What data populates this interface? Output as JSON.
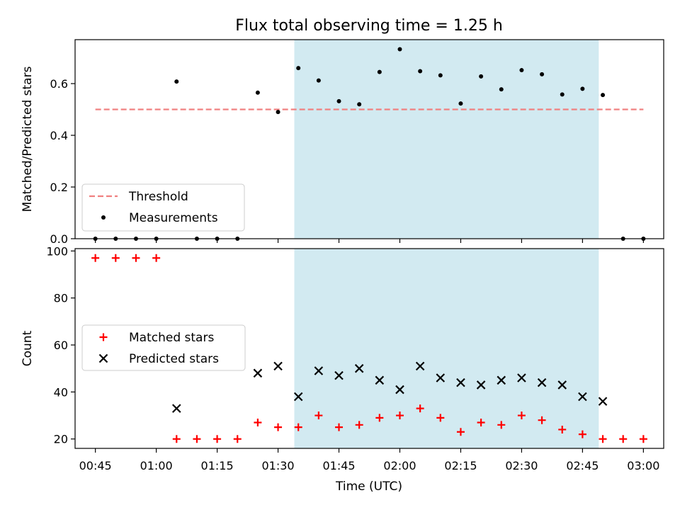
{
  "title": "Flux total observing time = 1.25 h",
  "xlabel": "Time (UTC)",
  "colors": {
    "shade": "#add8e6",
    "threshold": "#f08080",
    "measurements": "#000000",
    "matched": "#ff0000",
    "predicted": "#000000"
  },
  "chart_data": [
    {
      "type": "scatter",
      "ylabel": "Matched/Predicted stars",
      "ylim": [
        0,
        0.77
      ],
      "yticks": [
        "0.0",
        "0.2",
        "0.4",
        "0.6"
      ],
      "ytick_values": [
        0,
        0.2,
        0.4,
        0.6
      ],
      "x_range": [
        "00:40",
        "03:05"
      ],
      "shaded_interval": [
        "01:34",
        "02:49"
      ],
      "legend": {
        "placement": "lower-left",
        "entries": [
          "Threshold",
          "Measurements"
        ]
      },
      "threshold": {
        "name": "Threshold",
        "value": 0.5,
        "x": [
          "00:45",
          "03:00"
        ]
      },
      "series": [
        {
          "name": "Measurements",
          "x": [
            "00:45",
            "00:50",
            "00:55",
            "01:00",
            "01:05",
            "01:10",
            "01:15",
            "01:20",
            "01:25",
            "01:30",
            "01:35",
            "01:40",
            "01:45",
            "01:50",
            "01:55",
            "02:00",
            "02:05",
            "02:10",
            "02:15",
            "02:20",
            "02:25",
            "02:30",
            "02:35",
            "02:40",
            "02:45",
            "02:50",
            "02:55",
            "03:00"
          ],
          "y": [
            0.0,
            0.0,
            0.0,
            0.0,
            0.608,
            0.0,
            0.0,
            0.0,
            0.565,
            0.49,
            0.66,
            0.612,
            0.532,
            0.52,
            0.645,
            0.733,
            0.648,
            0.632,
            0.523,
            0.628,
            0.578,
            0.652,
            0.636,
            0.558,
            0.58,
            0.556,
            0.0,
            0.0
          ]
        }
      ]
    },
    {
      "type": "scatter",
      "ylabel": "Count",
      "ylim": [
        16,
        101
      ],
      "yticks": [
        "20",
        "40",
        "60",
        "80",
        "100"
      ],
      "ytick_values": [
        20,
        40,
        60,
        80,
        100
      ],
      "x_range": [
        "00:40",
        "03:05"
      ],
      "xticks": [
        "00:45",
        "01:00",
        "01:15",
        "01:30",
        "01:45",
        "02:00",
        "02:15",
        "02:30",
        "02:45",
        "03:00"
      ],
      "shaded_interval": [
        "01:34",
        "02:49"
      ],
      "legend": {
        "placement": "center-left",
        "entries": [
          "Matched stars",
          "Predicted stars"
        ]
      },
      "series": [
        {
          "name": "Matched stars",
          "x": [
            "00:45",
            "00:50",
            "00:55",
            "01:00",
            "01:05",
            "01:10",
            "01:15",
            "01:20",
            "01:25",
            "01:30",
            "01:35",
            "01:40",
            "01:45",
            "01:50",
            "01:55",
            "02:00",
            "02:05",
            "02:10",
            "02:15",
            "02:20",
            "02:25",
            "02:30",
            "02:35",
            "02:40",
            "02:45",
            "02:50",
            "02:55",
            "03:00"
          ],
          "y": [
            97,
            97,
            97,
            97,
            20,
            20,
            20,
            20,
            27,
            25,
            25,
            30,
            25,
            26,
            29,
            30,
            33,
            29,
            23,
            27,
            26,
            30,
            28,
            24,
            22,
            20,
            20,
            20
          ]
        },
        {
          "name": "Predicted stars",
          "x": [
            "01:05",
            "01:25",
            "01:30",
            "01:35",
            "01:40",
            "01:45",
            "01:50",
            "01:55",
            "02:00",
            "02:05",
            "02:10",
            "02:15",
            "02:20",
            "02:25",
            "02:30",
            "02:35",
            "02:40",
            "02:45",
            "02:50"
          ],
          "y": [
            33,
            48,
            51,
            38,
            49,
            47,
            50,
            45,
            41,
            51,
            46,
            44,
            43,
            45,
            46,
            44,
            43,
            38,
            36
          ]
        }
      ]
    }
  ]
}
